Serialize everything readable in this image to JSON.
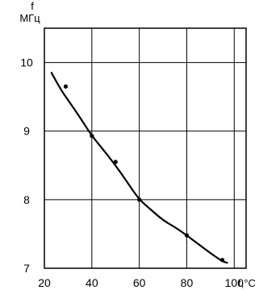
{
  "chart_data": {
    "type": "line",
    "title": "",
    "xlabel": "t,°C",
    "ylabel_top": "f",
    "ylabel_unit": "МГц",
    "xlim": [
      20,
      100
    ],
    "ylim": [
      7,
      10.5
    ],
    "x_ticks": [
      "20",
      "40",
      "60",
      "80",
      "100"
    ],
    "y_ticks": [
      "7",
      "8",
      "9",
      "10"
    ],
    "grid": true,
    "series": [
      {
        "curve": [
          [
            23,
            9.85
          ],
          [
            27,
            9.6
          ],
          [
            30,
            9.45
          ],
          [
            35,
            9.2
          ],
          [
            40,
            8.93
          ],
          [
            45,
            8.72
          ],
          [
            50,
            8.5
          ],
          [
            55,
            8.25
          ],
          [
            60,
            8.0
          ],
          [
            65,
            7.85
          ],
          [
            70,
            7.7
          ],
          [
            75,
            7.6
          ],
          [
            80,
            7.48
          ],
          [
            85,
            7.35
          ],
          [
            90,
            7.22
          ],
          [
            95,
            7.1
          ],
          [
            97,
            7.08
          ]
        ],
        "points": [
          [
            29,
            9.65
          ],
          [
            40,
            8.93
          ],
          [
            50,
            8.55
          ],
          [
            60,
            8.0
          ],
          [
            80,
            7.48
          ],
          [
            95,
            7.12
          ]
        ]
      }
    ]
  }
}
